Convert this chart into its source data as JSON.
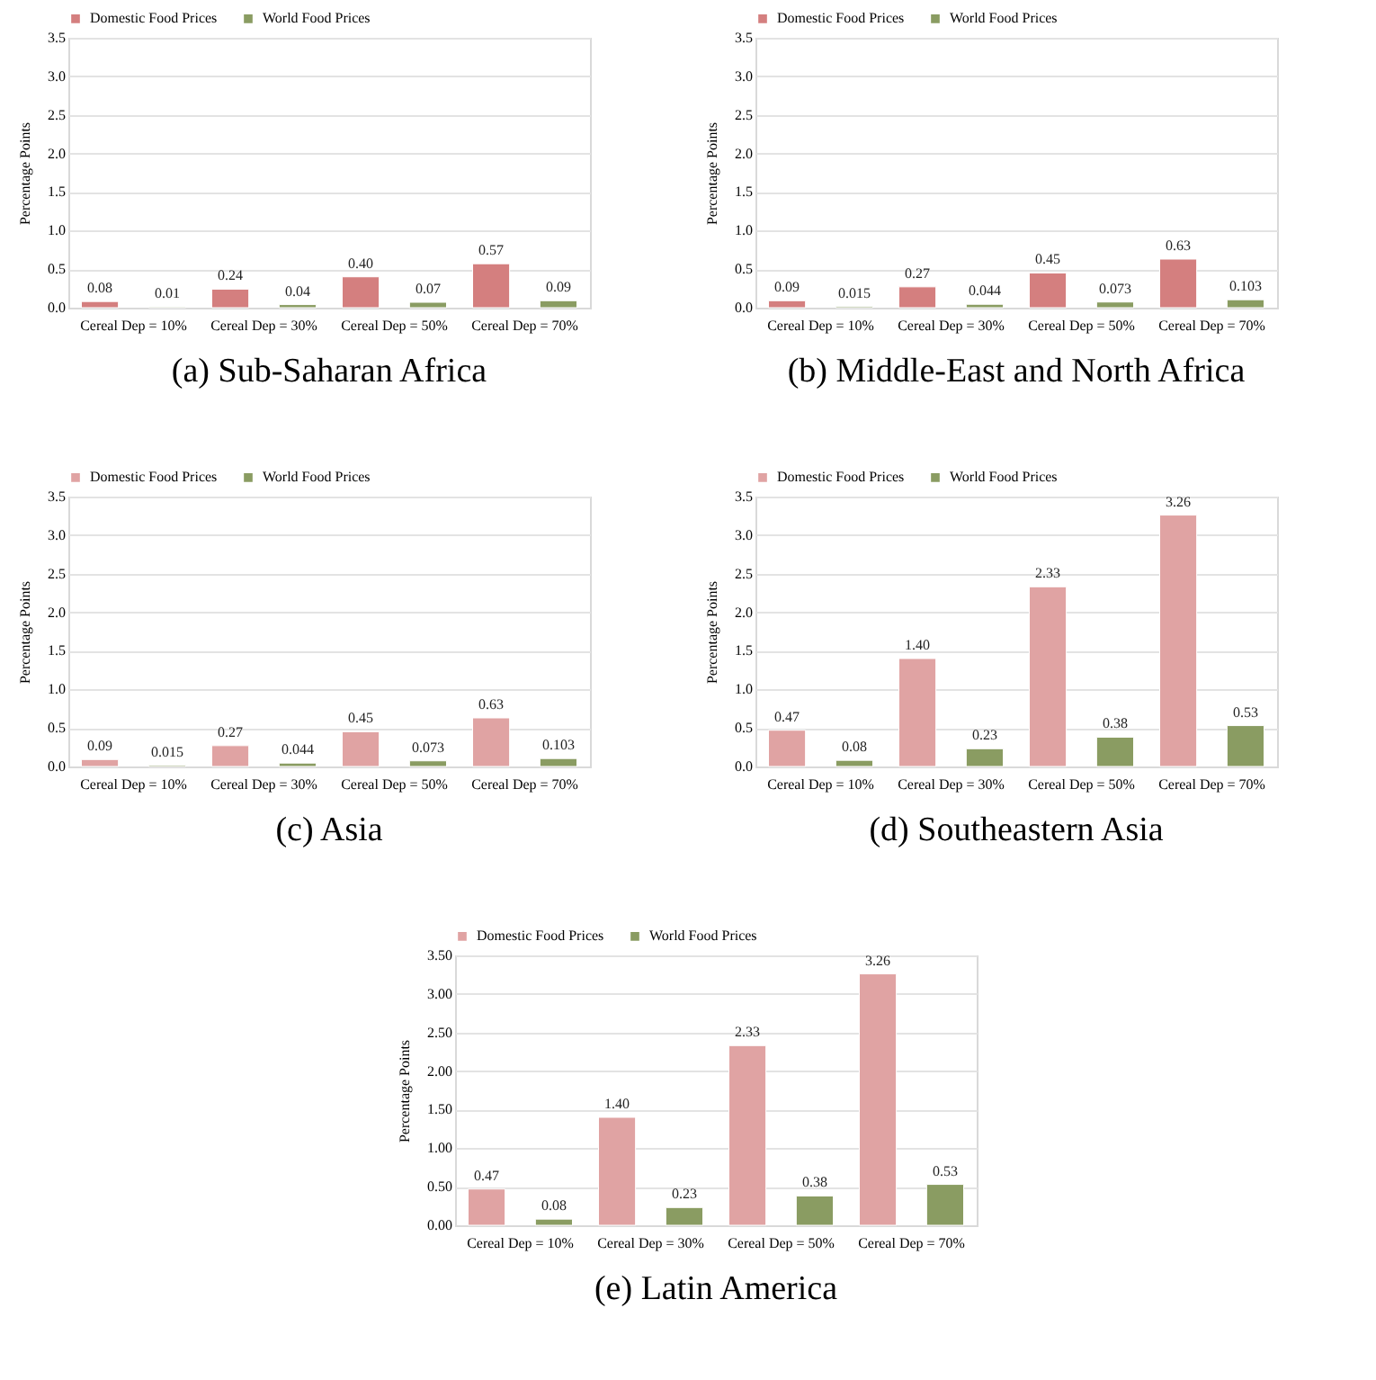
{
  "chart_data": [
    {
      "type": "bar",
      "title": "(a) Sub-Saharan Africa",
      "ylabel": "Percentage Points",
      "categories": [
        "Cereal Dep = 10%",
        "Cereal Dep = 30%",
        "Cereal Dep = 50%",
        "Cereal Dep = 70%"
      ],
      "series": [
        {
          "name": "Domestic Food Prices",
          "color": "#d47f7f",
          "values": [
            0.08,
            0.24,
            0.4,
            0.57
          ],
          "value_labels": [
            "0.08",
            "0.24",
            "0.40",
            "0.57"
          ]
        },
        {
          "name": "World Food Prices",
          "color": "#8a9c62",
          "values": [
            0.01,
            0.04,
            0.07,
            0.09
          ],
          "value_labels": [
            "0.01",
            "0.04",
            "0.07",
            "0.09"
          ]
        }
      ],
      "ylim": [
        0,
        3.5
      ],
      "yticks": [
        {
          "value": 0,
          "label": "0.0"
        },
        {
          "value": 0.5,
          "label": "0.5"
        },
        {
          "value": 1,
          "label": "1.0"
        },
        {
          "value": 1.5,
          "label": "1.5"
        },
        {
          "value": 2,
          "label": "2.0"
        },
        {
          "value": 2.5,
          "label": "2.5"
        },
        {
          "value": 3,
          "label": "3.0"
        },
        {
          "value": 3.5,
          "label": "3.5"
        }
      ],
      "grid": "y",
      "legend": "top"
    },
    {
      "type": "bar",
      "title": "(b) Middle-East and North Africa",
      "ylabel": "Percentage Points",
      "categories": [
        "Cereal Dep = 10%",
        "Cereal Dep = 30%",
        "Cereal Dep = 50%",
        "Cereal Dep = 70%"
      ],
      "series": [
        {
          "name": "Domestic Food Prices",
          "color": "#d47f7f",
          "values": [
            0.09,
            0.27,
            0.45,
            0.63
          ]
        },
        {
          "name": "World Food Prices",
          "color": "#8a9c62",
          "values": [
            0.015,
            0.044,
            0.073,
            0.103
          ]
        }
      ],
      "data_labels": true,
      "ylim": [
        0,
        3.5
      ],
      "yticks": [
        {
          "value": 0,
          "label": "0.0"
        },
        {
          "value": 0.5,
          "label": "0.5"
        },
        {
          "value": 1,
          "label": "1.0"
        },
        {
          "value": 1.5,
          "label": "1.5"
        },
        {
          "value": 2,
          "label": "2.0"
        },
        {
          "value": 2.5,
          "label": "2.5"
        },
        {
          "value": 3,
          "label": "3.0"
        },
        {
          "value": 3.5,
          "label": "3.5"
        }
      ],
      "grid": "y",
      "legend": "top"
    },
    {
      "type": "bar",
      "title": "(c) Asia",
      "ylabel": "Percentage Points",
      "categories": [
        "Cereal Dep = 10%",
        "Cereal Dep = 30%",
        "Cereal Dep = 50%",
        "Cereal Dep = 70%"
      ],
      "series": [
        {
          "name": "Domestic Food Prices",
          "color": "#e0a3a3",
          "values": [
            0.09,
            0.27,
            0.45,
            0.63
          ]
        },
        {
          "name": "World Food Prices",
          "color": "#8a9c62",
          "values": [
            0.015,
            0.044,
            0.073,
            0.103
          ]
        }
      ],
      "data_labels": true,
      "ylim": [
        0,
        3.5
      ],
      "yticks": [
        {
          "value": 0,
          "label": "0.0"
        },
        {
          "value": 0.5,
          "label": "0.5"
        },
        {
          "value": 1,
          "label": "1.0"
        },
        {
          "value": 1.5,
          "label": "1.5"
        },
        {
          "value": 2,
          "label": "2.0"
        },
        {
          "value": 2.5,
          "label": "2.5"
        },
        {
          "value": 3,
          "label": "3.0"
        },
        {
          "value": 3.5,
          "label": "3.5"
        }
      ],
      "grid": "y",
      "legend": "top"
    },
    {
      "type": "bar",
      "title": "(d) Southeastern Asia",
      "ylabel": "Percentage Points",
      "categories": [
        "Cereal Dep = 10%",
        "Cereal Dep = 30%",
        "Cereal Dep = 50%",
        "Cereal Dep = 70%"
      ],
      "series": [
        {
          "name": "Domestic Food Prices",
          "color": "#e0a3a3",
          "values": [
            0.47,
            1.4,
            2.33,
            3.26
          ],
          "value_labels": [
            "0.47",
            "1.40",
            "2.33",
            "3.26"
          ]
        },
        {
          "name": "World Food Prices",
          "color": "#8a9c62",
          "values": [
            0.08,
            0.23,
            0.38,
            0.53
          ],
          "value_labels": [
            "0.08",
            "0.23",
            "0.38",
            "0.53"
          ]
        }
      ],
      "ylim": [
        0,
        3.5
      ],
      "yticks": [
        {
          "value": 0,
          "label": "0.0"
        },
        {
          "value": 0.5,
          "label": "0.5"
        },
        {
          "value": 1,
          "label": "1.0"
        },
        {
          "value": 1.5,
          "label": "1.5"
        },
        {
          "value": 2,
          "label": "2.0"
        },
        {
          "value": 2.5,
          "label": "2.5"
        },
        {
          "value": 3,
          "label": "3.0"
        },
        {
          "value": 3.5,
          "label": "3.5"
        }
      ],
      "grid": "y",
      "legend": "top"
    },
    {
      "type": "bar",
      "title": "(e) Latin America",
      "ylabel": "Percentage Points",
      "categories": [
        "Cereal Dep = 10%",
        "Cereal Dep = 30%",
        "Cereal Dep = 50%",
        "Cereal Dep = 70%"
      ],
      "series": [
        {
          "name": "Domestic Food Prices",
          "color": "#e0a3a3",
          "values": [
            0.47,
            1.4,
            2.33,
            3.26
          ],
          "value_labels": [
            "0.47",
            "1.40",
            "2.33",
            "3.26"
          ]
        },
        {
          "name": "World Food Prices",
          "color": "#8a9c62",
          "values": [
            0.08,
            0.23,
            0.38,
            0.53
          ],
          "value_labels": [
            "0.08",
            "0.23",
            "0.38",
            "0.53"
          ]
        }
      ],
      "ylim": [
        0,
        3.5
      ],
      "yticks": [
        {
          "value": 0,
          "label": "0.00"
        },
        {
          "value": 0.5,
          "label": "0.50"
        },
        {
          "value": 1,
          "label": "1.00"
        },
        {
          "value": 1.5,
          "label": "1.50"
        },
        {
          "value": 2,
          "label": "2.00"
        },
        {
          "value": 2.5,
          "label": "2.50"
        },
        {
          "value": 3,
          "label": "3.00"
        },
        {
          "value": 3.5,
          "label": "3.50"
        }
      ],
      "grid": "y",
      "legend": "top"
    }
  ]
}
